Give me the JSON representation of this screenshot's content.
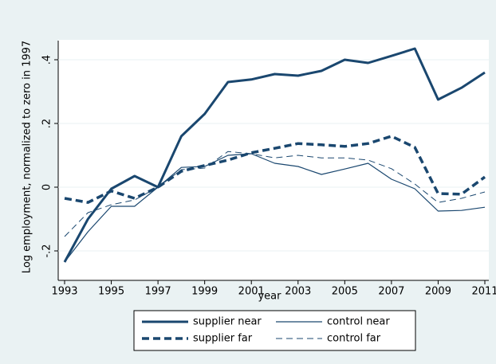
{
  "chart_data": {
    "type": "line",
    "x_label": "year",
    "y_label": "Log employment, normalized to zero in 1997",
    "x": [
      1993,
      1994,
      1995,
      1996,
      1997,
      1998,
      1999,
      2000,
      2001,
      2002,
      2003,
      2004,
      2005,
      2006,
      2007,
      2008,
      2009,
      2010,
      2011
    ],
    "series": [
      {
        "name": "supplier near",
        "color": "#1a476f",
        "line_width": 3,
        "dash": false,
        "values": [
          -0.235,
          -0.1,
          -0.005,
          0.035,
          0,
          0.16,
          0.23,
          0.33,
          0.338,
          0.355,
          0.35,
          0.365,
          0.4,
          0.39,
          0.412,
          0.435,
          0.275,
          0.312,
          0.36
        ]
      },
      {
        "name": "control near",
        "color": "#1a476f",
        "line_width": 1.2,
        "dash": false,
        "values": [
          -0.235,
          -0.14,
          -0.06,
          -0.06,
          0,
          0.062,
          0.065,
          0.1,
          0.105,
          0.075,
          0.065,
          0.04,
          0.057,
          0.075,
          0.025,
          -0.005,
          -0.075,
          -0.073,
          -0.063
        ]
      },
      {
        "name": "supplier far",
        "color": "#1a476f",
        "line_width": 3.5,
        "dash": true,
        "values": [
          -0.035,
          -0.048,
          -0.012,
          -0.035,
          0,
          0.05,
          0.068,
          0.085,
          0.108,
          0.122,
          0.137,
          0.133,
          0.128,
          0.137,
          0.16,
          0.125,
          -0.02,
          -0.022,
          0.032
        ]
      },
      {
        "name": "control far",
        "color": "#1a476f",
        "line_width": 1,
        "dash": true,
        "values": [
          -0.155,
          -0.08,
          -0.055,
          -0.04,
          0,
          0.055,
          0.06,
          0.112,
          0.105,
          0.092,
          0.1,
          0.092,
          0.092,
          0.085,
          0.058,
          0.01,
          -0.048,
          -0.035,
          -0.015
        ]
      }
    ],
    "xlim": [
      1993,
      2011
    ],
    "xticks": [
      1993,
      1995,
      1997,
      1999,
      2001,
      2003,
      2005,
      2007,
      2009,
      2011
    ],
    "ylim": [
      -0.27,
      0.46
    ],
    "yticks": [
      {
        "value": -0.2,
        "label": "-.2"
      },
      {
        "value": 0,
        "label": "0"
      },
      {
        "value": 0.2,
        "label": ".2"
      },
      {
        "value": 0.4,
        "label": ".4"
      }
    ],
    "grid": true,
    "legend_position": "bottom",
    "legend_columns": 2
  }
}
